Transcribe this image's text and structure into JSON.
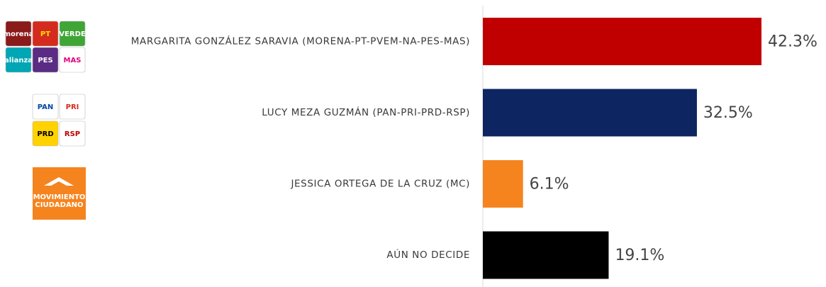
{
  "chart_data": {
    "type": "bar",
    "orientation": "horizontal",
    "categories": [
      "MARGARITA GONZÁLEZ SARAVIA (MORENA-PT-PVEM-NA-PES-MAS)",
      "LUCY MEZA GUZMÁN (PAN-PRI-PRD-RSP)",
      "JESSICA ORTEGA DE LA CRUZ (MC)",
      "AÚN NO DECIDE"
    ],
    "values": [
      42.3,
      32.5,
      6.1,
      19.1
    ],
    "value_labels": [
      "42.3%",
      "32.5%",
      "6.1%",
      "19.1%"
    ],
    "colors": [
      "#c00000",
      "#0d2560",
      "#f5841f",
      "#000000"
    ],
    "logos": [
      [
        "morena",
        "PT",
        "VERDE",
        "alianza",
        "PES",
        "MAS"
      ],
      [
        "PAN",
        "PRI",
        "PRD",
        "RSP"
      ],
      [
        "MOVIMIENTO",
        "CIUDADANO"
      ]
    ]
  }
}
